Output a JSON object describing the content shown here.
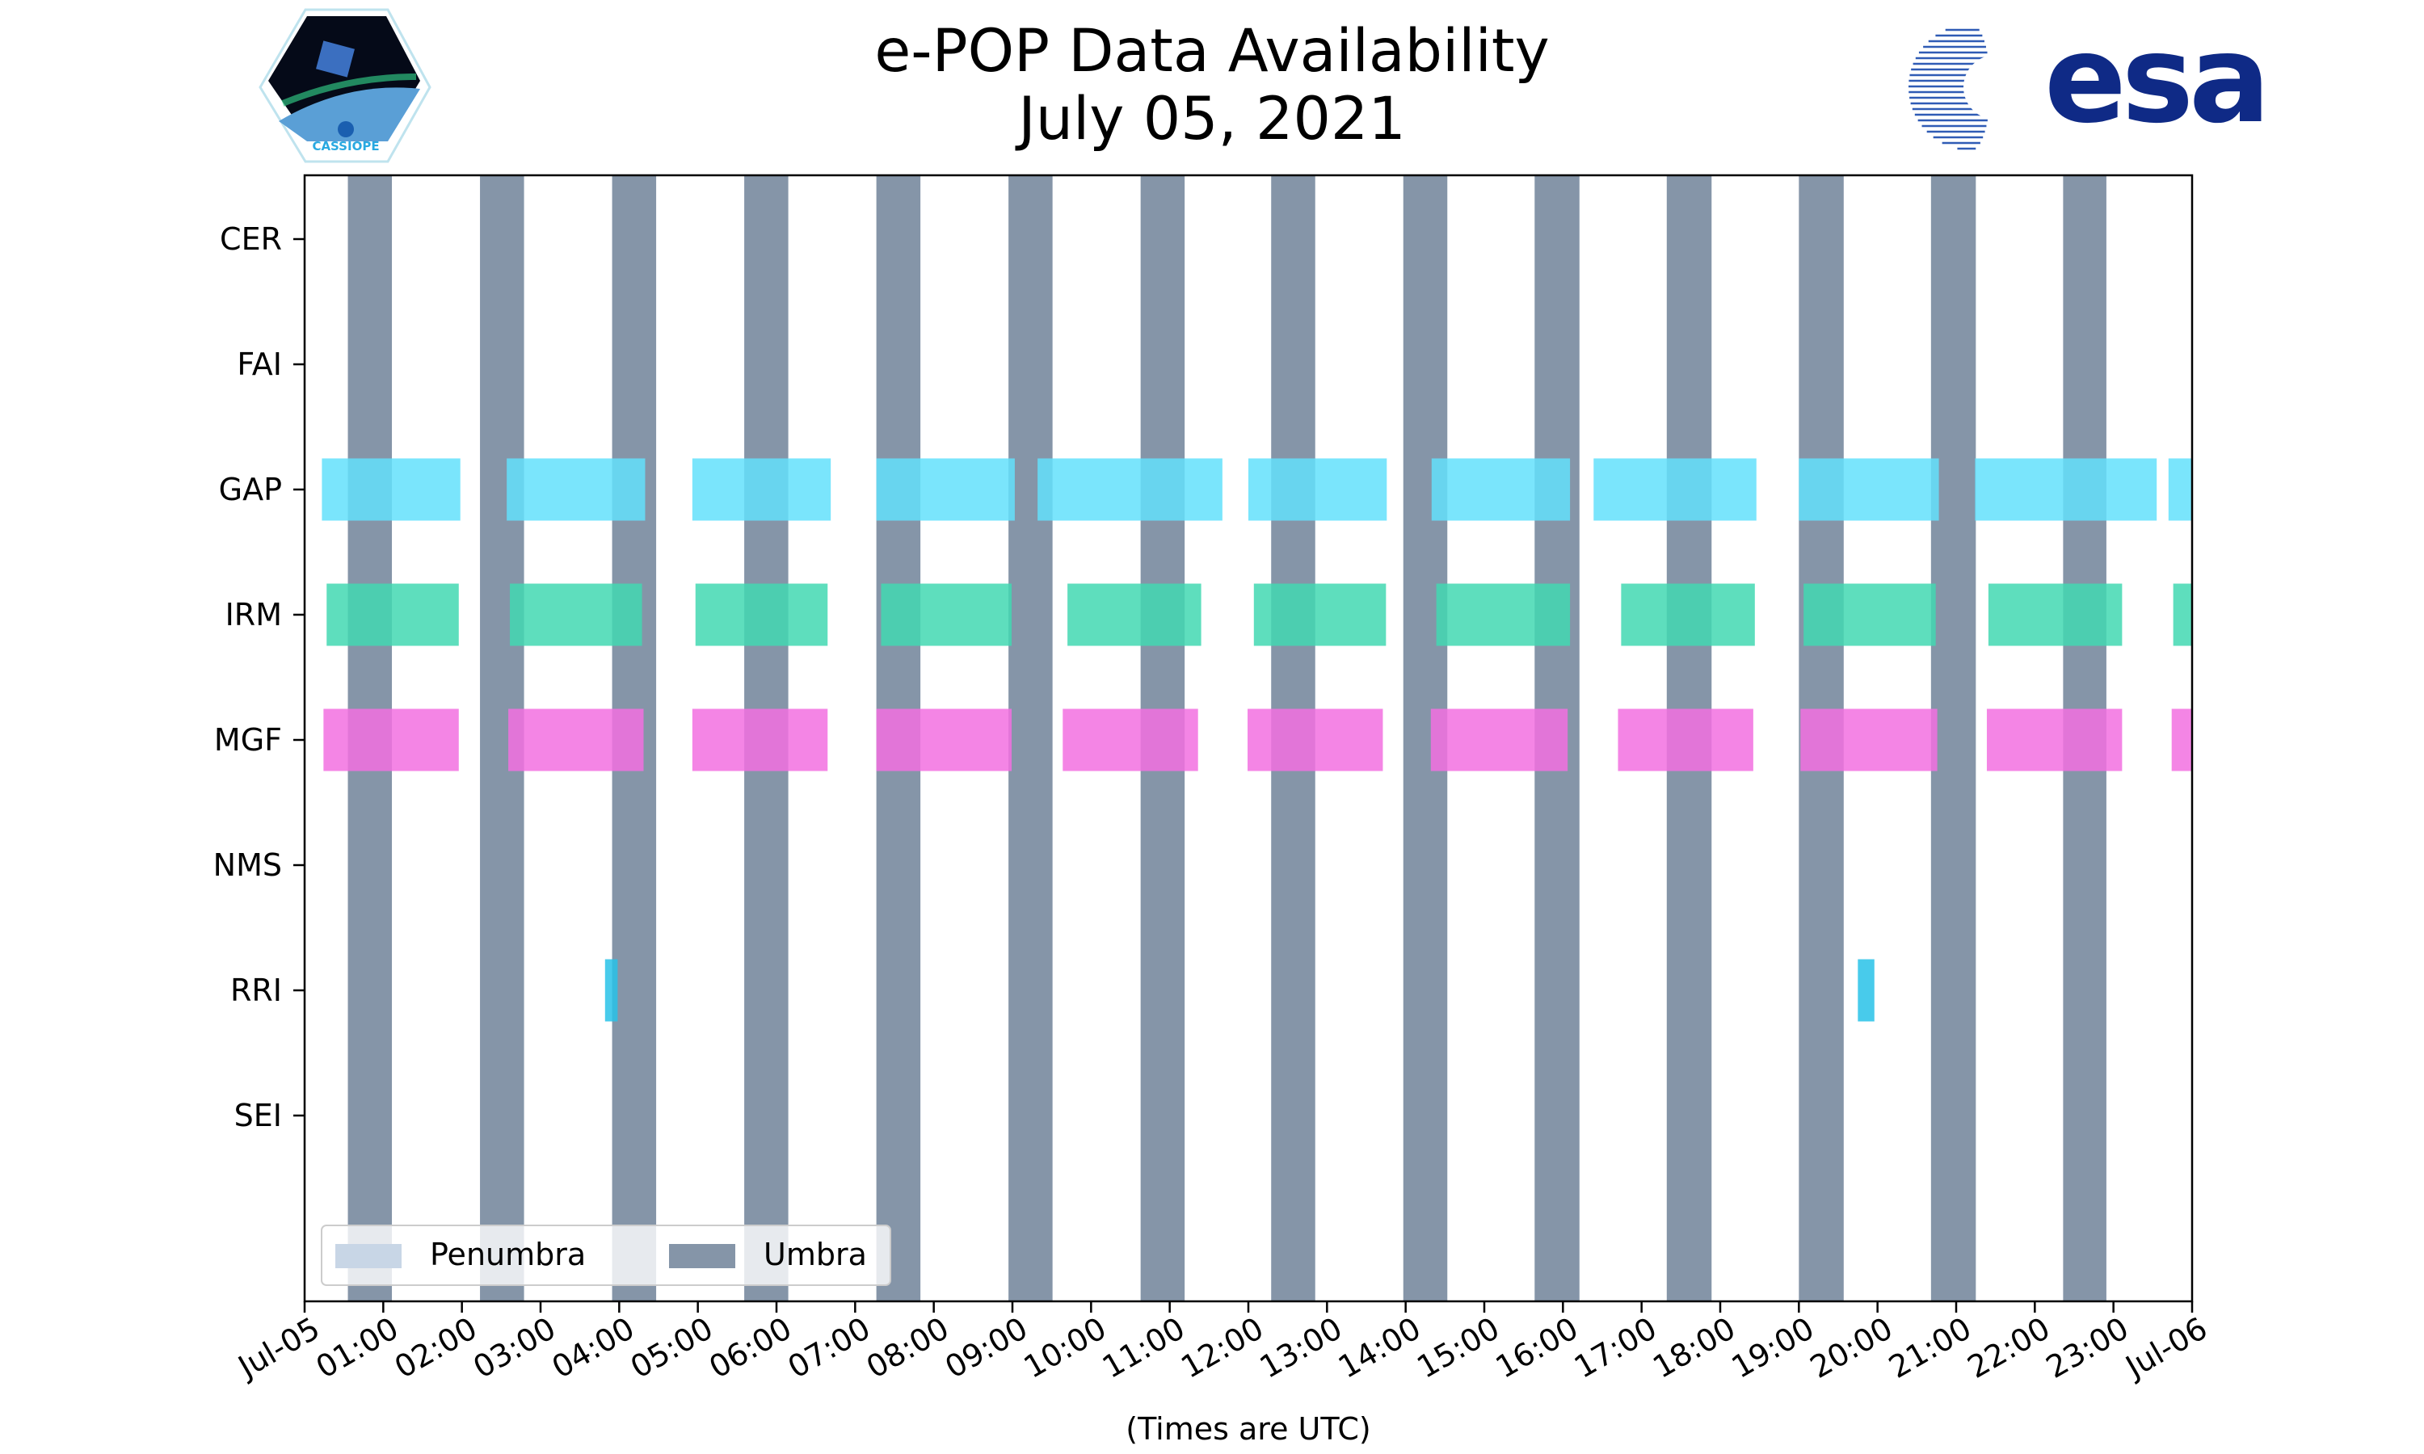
{
  "chart_data": {
    "type": "timeline",
    "title": "e-POP Data Availability",
    "subtitle": "July 05, 2021",
    "xlabel": "(Times are UTC)",
    "xlim_hours": [
      0,
      24
    ],
    "x_tick_labels": [
      "Jul-05",
      "01:00",
      "02:00",
      "03:00",
      "04:00",
      "05:00",
      "06:00",
      "07:00",
      "08:00",
      "09:00",
      "10:00",
      "11:00",
      "12:00",
      "13:00",
      "14:00",
      "15:00",
      "16:00",
      "17:00",
      "18:00",
      "19:00",
      "20:00",
      "21:00",
      "22:00",
      "23:00",
      "Jul-06"
    ],
    "categories": [
      "CER",
      "FAI",
      "GAP",
      "IRM",
      "MGF",
      "NMS",
      "RRI",
      "SEI"
    ],
    "umbra_intervals_hours": [
      [
        0.55,
        1.11
      ],
      [
        2.23,
        2.79
      ],
      [
        3.91,
        4.47
      ],
      [
        5.59,
        6.15
      ],
      [
        7.27,
        7.83
      ],
      [
        8.95,
        9.51
      ],
      [
        10.63,
        11.19
      ],
      [
        12.29,
        12.85
      ],
      [
        13.97,
        14.53
      ],
      [
        15.64,
        16.21
      ],
      [
        17.32,
        17.89
      ],
      [
        19.0,
        19.57
      ],
      [
        20.68,
        21.25
      ],
      [
        22.36,
        22.91
      ]
    ],
    "penumbra_intervals_hours": [],
    "series": [
      {
        "name": "CER",
        "color": "#63e0fb",
        "intervals_hours": []
      },
      {
        "name": "FAI",
        "color": "#63e0fb",
        "intervals_hours": []
      },
      {
        "name": "GAP",
        "color": "#63e0fb",
        "intervals_hours": [
          [
            0.22,
            1.98
          ],
          [
            2.57,
            4.33
          ],
          [
            4.93,
            6.69
          ],
          [
            7.27,
            9.03
          ],
          [
            9.32,
            11.67
          ],
          [
            12.0,
            13.76
          ],
          [
            14.33,
            16.09
          ],
          [
            16.39,
            18.46
          ],
          [
            19.0,
            20.78
          ],
          [
            21.24,
            23.55
          ],
          [
            23.7,
            24.0
          ]
        ]
      },
      {
        "name": "IRM",
        "color": "#42d8b2",
        "intervals_hours": [
          [
            0.28,
            1.96
          ],
          [
            2.61,
            4.29
          ],
          [
            4.97,
            6.65
          ],
          [
            7.33,
            8.99
          ],
          [
            9.7,
            11.4
          ],
          [
            12.07,
            13.75
          ],
          [
            14.39,
            16.09
          ],
          [
            16.74,
            18.44
          ],
          [
            19.06,
            20.74
          ],
          [
            21.41,
            23.11
          ],
          [
            23.76,
            24.0
          ]
        ]
      },
      {
        "name": "MGF",
        "color": "#f270e0",
        "intervals_hours": [
          [
            0.24,
            1.96
          ],
          [
            2.59,
            4.31
          ],
          [
            4.93,
            6.65
          ],
          [
            7.27,
            8.99
          ],
          [
            9.64,
            11.36
          ],
          [
            11.99,
            13.71
          ],
          [
            14.32,
            16.06
          ],
          [
            16.7,
            18.42
          ],
          [
            19.02,
            20.76
          ],
          [
            21.39,
            23.11
          ],
          [
            23.74,
            24.0
          ]
        ]
      },
      {
        "name": "NMS",
        "color": "#63e0fb",
        "intervals_hours": []
      },
      {
        "name": "RRI",
        "color": "#28c2e8",
        "intervals_hours": [
          [
            3.82,
            3.98
          ],
          [
            19.75,
            19.96
          ]
        ]
      },
      {
        "name": "SEI",
        "color": "#63e0fb",
        "intervals_hours": []
      }
    ],
    "legend": {
      "position": "lower-left",
      "entries": [
        {
          "label": "Penumbra",
          "color": "#c8d6e6"
        },
        {
          "label": "Umbra",
          "color": "#8595a8"
        }
      ]
    },
    "umbra_color": "#8595a8"
  },
  "logos": {
    "left": "CASSIOPE",
    "right": "esa"
  }
}
